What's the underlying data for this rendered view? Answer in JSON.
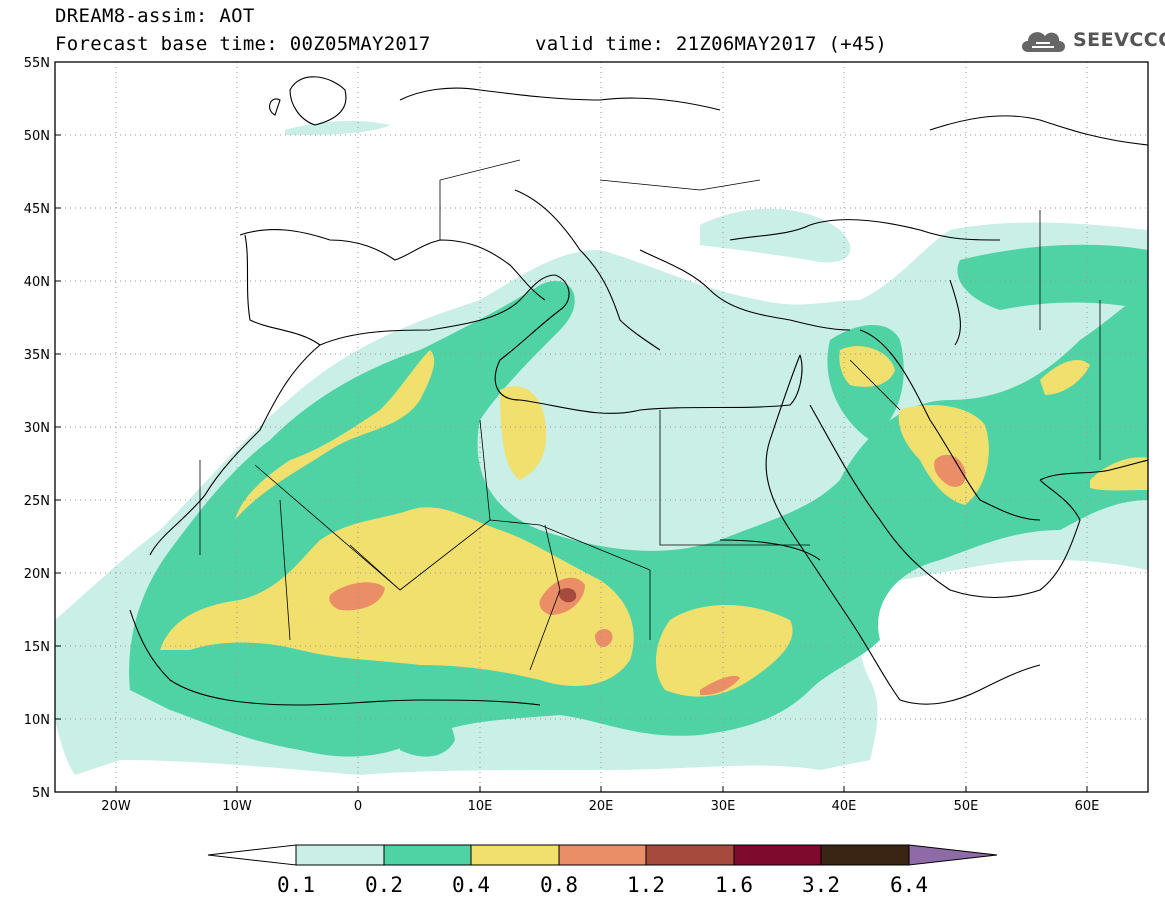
{
  "header": {
    "title": "DREAM8-assim: AOT",
    "base_time": "Forecast base time: 00Z05MAY2017",
    "valid_time": "valid time: 21Z06MAY2017 (+45)",
    "logo_text": "SEEVCCC",
    "logo_icon": "cloud-icon"
  },
  "axes": {
    "lat_labels": [
      "55N",
      "50N",
      "45N",
      "40N",
      "35N",
      "30N",
      "25N",
      "20N",
      "15N",
      "10N",
      "5N"
    ],
    "lon_labels": [
      "20W",
      "10W",
      "0",
      "10E",
      "20E",
      "30E",
      "40E",
      "50E",
      "60E"
    ],
    "lat_range": [
      5,
      55
    ],
    "lon_range": [
      -25,
      65
    ]
  },
  "colorbar": {
    "labels": [
      "0.1",
      "0.2",
      "0.4",
      "0.8",
      "1.2",
      "1.6",
      "3.2",
      "6.4"
    ],
    "colors": [
      "#ffffff",
      "#c9efe6",
      "#4fd3a5",
      "#f1df6e",
      "#e98e66",
      "#a54a3c",
      "#7e0a2e",
      "#3a2414",
      "#8e6aa6"
    ]
  },
  "colors": {
    "land_line": "#000000",
    "grid": "#9a9a9a"
  }
}
